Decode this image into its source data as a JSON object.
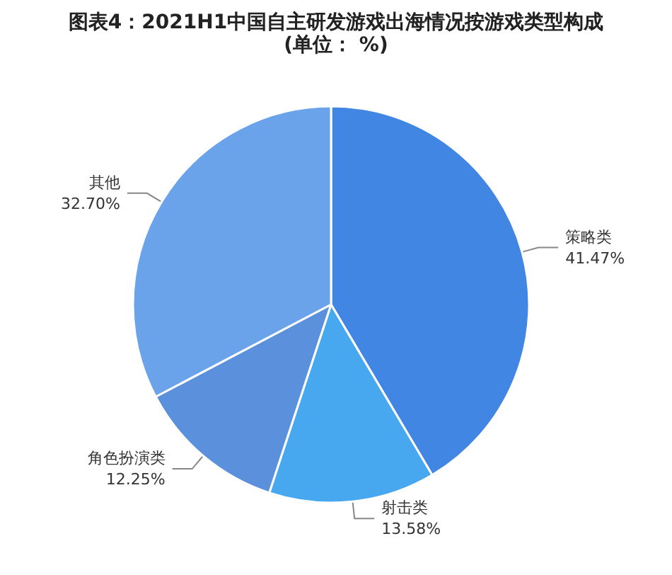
{
  "chart_data": {
    "type": "pie",
    "title": "图表4：2021H1中国自主研发游戏出海情况按游戏类型构成",
    "subtitle": "(单位： %)",
    "categories": [
      "策略类",
      "射击类",
      "角色扮演类",
      "其他"
    ],
    "values": [
      41.47,
      13.58,
      12.25,
      32.7
    ],
    "value_labels": [
      "41.47%",
      "13.58%",
      "12.25%",
      "32.70%"
    ],
    "colors": [
      "#4286e3",
      "#47a8f0",
      "#5a90dc",
      "#6ba3eb"
    ],
    "legend": false
  }
}
